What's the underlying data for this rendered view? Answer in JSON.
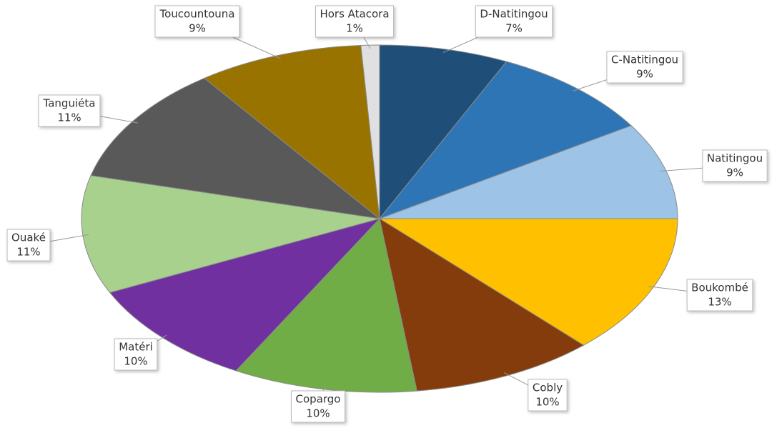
{
  "chart_data": {
    "type": "pie",
    "categories": [
      "D-Natitingou",
      "C-Natitingou",
      "Natitingou",
      "Boukombé",
      "Cobly",
      "Copargo",
      "Matéri",
      "Ouaké",
      "Tanguiéta",
      "Toucountouna",
      "Hors Atacora"
    ],
    "values": [
      7,
      9,
      9,
      13,
      10,
      10,
      10,
      11,
      11,
      9,
      1
    ],
    "value_labels": [
      "7%",
      "9%",
      "9%",
      "13%",
      "10%",
      "10%",
      "10%",
      "11%",
      "11%",
      "9%",
      "1%"
    ],
    "colors": [
      "#1f4e79",
      "#2e75b6",
      "#9dc3e6",
      "#ffc000",
      "#843c0c",
      "#70ad47",
      "#7030a0",
      "#a9d18e",
      "#595959",
      "#997300",
      "#e0e0e0"
    ]
  }
}
